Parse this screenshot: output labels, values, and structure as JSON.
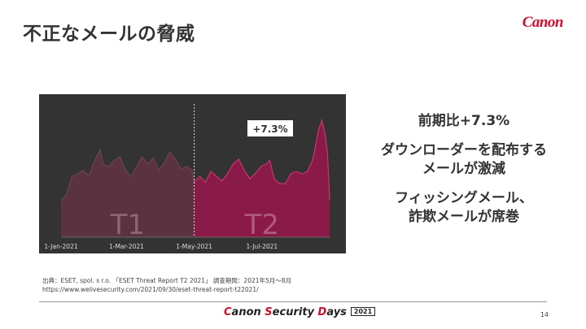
{
  "slide": {
    "title": "不正なメールの脅威",
    "logo": "Canon",
    "page_number": "14"
  },
  "points": [
    {
      "lines": [
        "前期比+7.3%"
      ]
    },
    {
      "lines": [
        "ダウンローダーを配布する",
        "メールが激減"
      ]
    },
    {
      "lines": [
        "フィッシングメール、",
        "詐欺メールが席巻"
      ]
    }
  ],
  "source": {
    "lines": [
      "出典：ESET, spol. s r.o. 「ESET Threat Report T2 2021」 調査期間：2021年5月～8月",
      "https://www.welivesecurity.com/2021/09/30/eset-threat-report-t22021/"
    ]
  },
  "footer": {
    "brand_c": "C",
    "brand_1": "anon ",
    "brand_s": "S",
    "brand_2": "ecurity ",
    "brand_d": "D",
    "brand_3": "ays",
    "year": "2021"
  },
  "chart_data": {
    "type": "area",
    "colors": {
      "background": "#333333",
      "t1_fill": "#5b3340",
      "t2_fill": "#8a1a48",
      "t2_line": "#c23a6e",
      "t1_label": "#8c6670",
      "t2_label": "#b05a80"
    },
    "x_tick_labels": [
      {
        "label": "1-Jan-2021",
        "day": 0
      },
      {
        "label": "1-Mar-2021",
        "day": 59
      },
      {
        "label": "1-May-2021",
        "day": 120
      },
      {
        "label": "1-Jul-2021",
        "day": 181
      }
    ],
    "divider_day": 120,
    "annotation": "+7.3%",
    "series": [
      {
        "name": "T1",
        "values": [
          [
            0,
            0.3
          ],
          [
            5,
            0.35
          ],
          [
            10,
            0.5
          ],
          [
            15,
            0.52
          ],
          [
            20,
            0.55
          ],
          [
            25,
            0.5
          ],
          [
            30,
            0.62
          ],
          [
            35,
            0.72
          ],
          [
            38,
            0.6
          ],
          [
            43,
            0.58
          ],
          [
            48,
            0.63
          ],
          [
            53,
            0.66
          ],
          [
            58,
            0.55
          ],
          [
            63,
            0.5
          ],
          [
            68,
            0.58
          ],
          [
            73,
            0.66
          ],
          [
            78,
            0.6
          ],
          [
            83,
            0.65
          ],
          [
            88,
            0.55
          ],
          [
            93,
            0.61
          ],
          [
            98,
            0.7
          ],
          [
            103,
            0.64
          ],
          [
            108,
            0.56
          ],
          [
            113,
            0.58
          ],
          [
            118,
            0.55
          ],
          [
            120,
            0.45
          ]
        ]
      },
      {
        "name": "T2",
        "values": [
          [
            120,
            0.45
          ],
          [
            125,
            0.5
          ],
          [
            130,
            0.45
          ],
          [
            135,
            0.54
          ],
          [
            140,
            0.5
          ],
          [
            145,
            0.46
          ],
          [
            150,
            0.52
          ],
          [
            155,
            0.6
          ],
          [
            160,
            0.64
          ],
          [
            165,
            0.55
          ],
          [
            170,
            0.48
          ],
          [
            175,
            0.52
          ],
          [
            180,
            0.58
          ],
          [
            185,
            0.6
          ],
          [
            188,
            0.63
          ],
          [
            192,
            0.48
          ],
          [
            197,
            0.44
          ],
          [
            202,
            0.44
          ],
          [
            207,
            0.52
          ],
          [
            212,
            0.54
          ],
          [
            217,
            0.52
          ],
          [
            222,
            0.54
          ],
          [
            227,
            0.64
          ],
          [
            232,
            0.88
          ],
          [
            235,
            0.96
          ],
          [
            238,
            0.84
          ],
          [
            240,
            0.7
          ],
          [
            242,
            0.3
          ]
        ]
      }
    ]
  }
}
